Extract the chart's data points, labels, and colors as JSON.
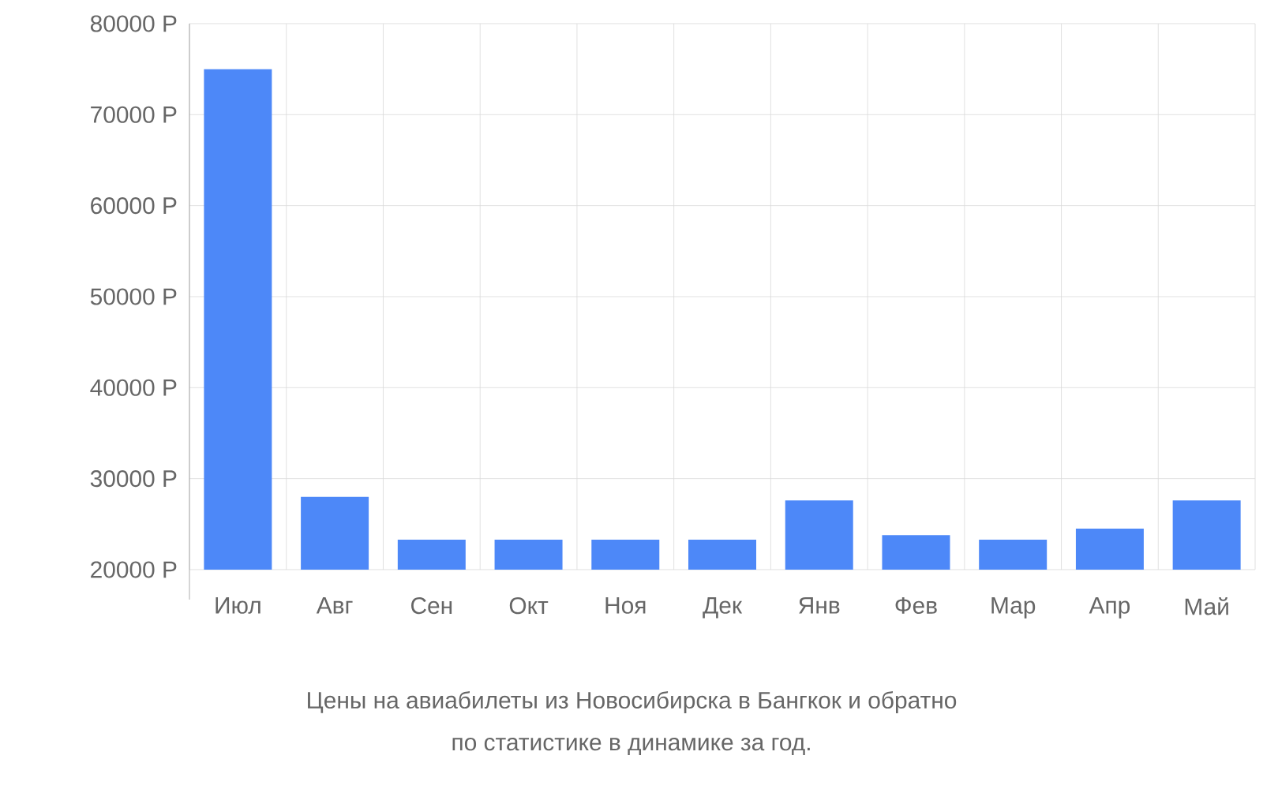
{
  "chart_data": {
    "type": "bar",
    "categories": [
      "Июл",
      "Авг",
      "Сен",
      "Окт",
      "Ноя",
      "Дек",
      "Янв",
      "Фев",
      "Мар",
      "Апр",
      "Май"
    ],
    "values": [
      75000,
      28000,
      23300,
      23300,
      23300,
      23300,
      27600,
      23800,
      23300,
      24500,
      27600
    ],
    "color": "#4d88f8",
    "ylim": [
      20000,
      80000
    ],
    "yticks": [
      {
        "value": 20000,
        "label": "20000 Р"
      },
      {
        "value": 30000,
        "label": "30000 Р"
      },
      {
        "value": 40000,
        "label": "40000 Р"
      },
      {
        "value": 50000,
        "label": "50000 Р"
      },
      {
        "value": 60000,
        "label": "60000 Р"
      },
      {
        "value": 70000,
        "label": "70000 Р"
      },
      {
        "value": 80000,
        "label": "80000 Р"
      }
    ],
    "grid": true,
    "annotations": [
      "Цены на авиабилеты из Новосибирска в Бангкок и обратно",
      "по статистике в динамике за год."
    ]
  }
}
